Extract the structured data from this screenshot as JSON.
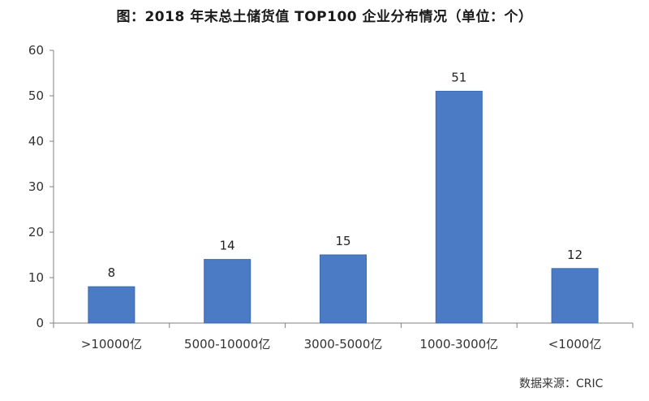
{
  "chart_data": {
    "type": "bar",
    "title": "图：2018 年末总土储货值 TOP100 企业分布情况（单位：个）",
    "categories": [
      ">10000亿",
      "5000-10000亿",
      "3000-5000亿",
      "1000-3000亿",
      "<1000亿"
    ],
    "values": [
      8,
      14,
      15,
      51,
      12
    ],
    "data_labels": [
      "8",
      "14",
      "15",
      "51",
      "12"
    ],
    "ylim": [
      0,
      60
    ],
    "yticks": [
      0,
      10,
      20,
      30,
      40,
      50,
      60
    ],
    "xlabel": "",
    "ylabel": "",
    "grid": false,
    "legend": "none",
    "bar_color": "#4a7bc4",
    "bar_edge_color": "#3b6bb0",
    "source": "数据来源：CRIC"
  }
}
